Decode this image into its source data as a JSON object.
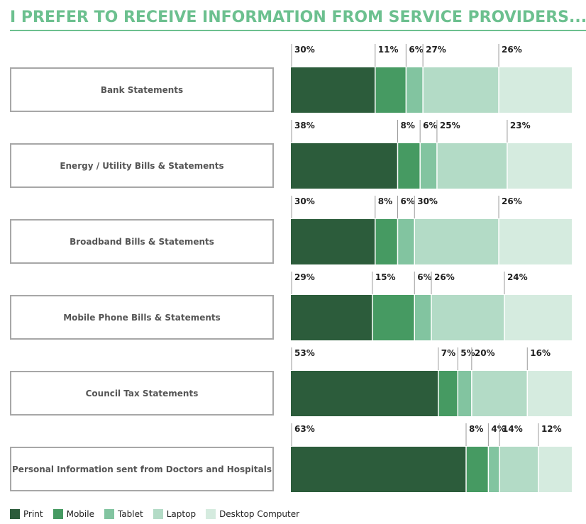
{
  "title": "I PREFER TO RECEIVE INFORMATION FROM SERVICE PROVIDERS...",
  "colors": [
    "#2c5c3b",
    "#469a62",
    "#82c4a0",
    "#b3dbc6",
    "#d5ebdf"
  ],
  "chart_data": {
    "type": "bar",
    "orientation": "horizontal",
    "stacked": true,
    "categories": [
      "Bank Statements",
      "Energy / Utility Bills & Statements",
      "Broadband Bills & Statements",
      "Mobile Phone Bills & Statements",
      "Council Tax Statements",
      "Personal Information sent from Doctors and Hospitals"
    ],
    "series": [
      {
        "name": "Print",
        "values": [
          30,
          38,
          30,
          29,
          53,
          63
        ],
        "labels": [
          "30%",
          "38%",
          "30%",
          "29%",
          "53%",
          "63%"
        ]
      },
      {
        "name": "Mobile",
        "values": [
          11,
          8,
          8,
          15,
          7,
          8
        ],
        "labels": [
          "11%",
          "8%",
          "8%",
          "15%",
          "7%",
          "8%"
        ]
      },
      {
        "name": "Tablet",
        "values": [
          6,
          6,
          6,
          6,
          5,
          4
        ],
        "labels": [
          "6%",
          "6%",
          "6%",
          "6%",
          "5%",
          "4%"
        ]
      },
      {
        "name": "Laptop",
        "values": [
          27,
          25,
          30,
          26,
          20,
          14
        ],
        "labels": [
          "27%",
          "25%",
          "30%",
          "26%",
          "20%",
          "14%"
        ]
      },
      {
        "name": "Desktop Computer",
        "values": [
          26,
          23,
          26,
          24,
          16,
          12
        ],
        "labels": [
          "26%",
          "23%",
          "26%",
          "24%",
          "16%",
          "12%"
        ]
      }
    ],
    "legend": [
      "Print",
      "Mobile",
      "Tablet",
      "Laptop",
      "Desktop Computer"
    ],
    "legend_position": "bottom-left"
  }
}
